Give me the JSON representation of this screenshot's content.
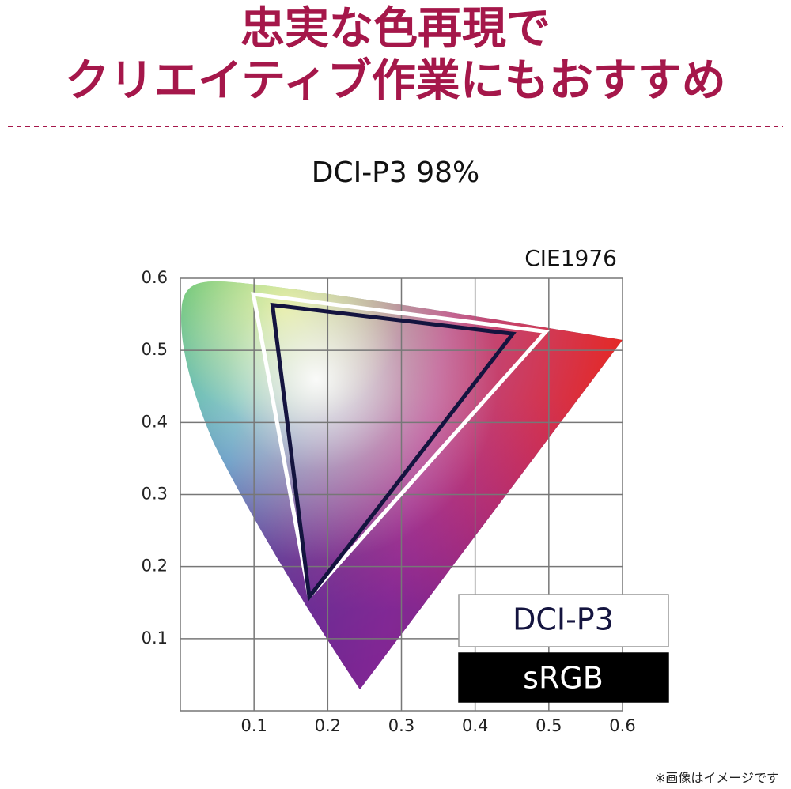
{
  "chart_data": {
    "type": "gamut",
    "title": [
      "忠実な色再現で",
      "クリエイティブ作業にもおすすめ"
    ],
    "subtitle": "DCI-P3 98%",
    "space_label": "CIE1976",
    "footnote": "※画像はイメージです",
    "xlim": [
      0,
      0.6
    ],
    "ylim": [
      0,
      0.6
    ],
    "xticks": [
      0.1,
      0.2,
      0.3,
      0.4,
      0.5,
      0.6
    ],
    "yticks": [
      0.1,
      0.2,
      0.3,
      0.4,
      0.5,
      0.6
    ],
    "grid": true,
    "series": [
      {
        "name": "DCI-P3",
        "color": "#ffffff",
        "x": [
          0.099,
          0.496,
          0.175
        ],
        "values": [
          0.578,
          0.526,
          0.158
        ]
      },
      {
        "name": "sRGB",
        "color": "#14143f",
        "x": [
          0.125,
          0.451,
          0.175
        ],
        "values": [
          0.563,
          0.523,
          0.158
        ]
      }
    ]
  }
}
